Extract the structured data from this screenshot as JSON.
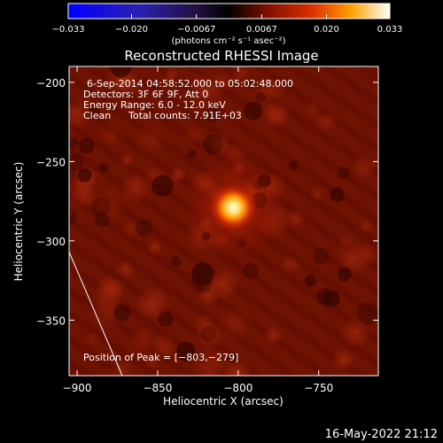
{
  "chart_data": {
    "type": "heatmap",
    "title": "Reconstructed RHESSI Image",
    "xlabel": "Heliocentric X (arcsec)",
    "ylabel": "Heliocentric Y (arcsec)",
    "xlim": [
      -905,
      -713
    ],
    "ylim": [
      -385,
      -190
    ],
    "x_ticks": [
      -900,
      -850,
      -800,
      -750
    ],
    "x_tick_labels": [
      "−900",
      "−850",
      "−800",
      "−750"
    ],
    "y_ticks": [
      -200,
      -250,
      -300,
      -350
    ],
    "y_tick_labels": [
      "−200",
      "−250",
      "−300",
      "−350"
    ],
    "colorbar": {
      "range": [
        -0.033,
        0.033
      ],
      "ticks": [
        -0.033,
        -0.02,
        -0.0067,
        0.0067,
        0.02,
        0.033
      ],
      "tick_labels": [
        "−0.033",
        "−0.020",
        "−0.0067",
        "0.0067",
        "0.020",
        "0.033"
      ],
      "unit_label": "(photons cm⁻² s⁻¹ asec⁻²)"
    },
    "peak": [
      -803,
      -279
    ],
    "limb_line": {
      "x": [
        -905,
        -872
      ],
      "y": [
        -307,
        -385
      ]
    },
    "annotations": {
      "time": "6-Sep-2014 04:58:52.000 to 05:02:48.000",
      "detectors": "Detectors: 3F 6F 9F, Att 0",
      "energy": "Energy Range: 6.0 - 12.0 keV",
      "method": "Clean",
      "counts": "Total counts: 7.91E+03",
      "peak_label": "Position of Peak = [−803,−279]"
    }
  },
  "footer": {
    "date": "16-May-2022 21:12"
  },
  "colors": {
    "background": "#000000",
    "text": "#ffffff",
    "peak": "#ffffd0"
  }
}
